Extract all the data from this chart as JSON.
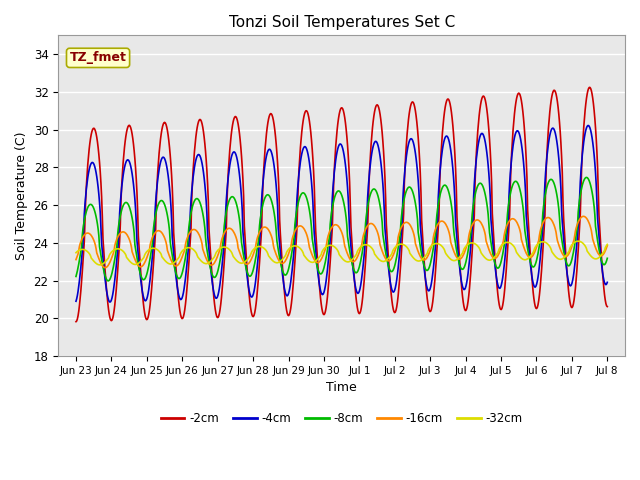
{
  "title": "Tonzi Soil Temperatures Set C",
  "xlabel": "Time",
  "ylabel": "Soil Temperature (C)",
  "ylim": [
    18,
    35
  ],
  "bg_color": "#e8e8e8",
  "annotation_text": "TZ_fmet",
  "annotation_bg": "#ffffcc",
  "annotation_border": "#aaaa00",
  "annotation_text_color": "#880000",
  "series": [
    {
      "label": "-2cm",
      "color": "#cc0000",
      "amplitude": 5.5,
      "phase_lag": 0.0,
      "base": 24.5,
      "base_trend": 1.5,
      "sharpness": 3.0
    },
    {
      "label": "-4cm",
      "color": "#0000cc",
      "amplitude": 4.0,
      "phase_lag": 0.08,
      "base": 24.2,
      "base_trend": 1.5,
      "sharpness": 2.0
    },
    {
      "label": "-8cm",
      "color": "#00bb00",
      "amplitude": 2.2,
      "phase_lag": 0.18,
      "base": 23.8,
      "base_trend": 1.2,
      "sharpness": 1.2
    },
    {
      "label": "-16cm",
      "color": "#ff8800",
      "amplitude": 1.0,
      "phase_lag": 0.35,
      "base": 23.5,
      "base_trend": 0.8,
      "sharpness": 0.8
    },
    {
      "label": "-32cm",
      "color": "#dddd00",
      "amplitude": 0.45,
      "phase_lag": 0.65,
      "base": 23.2,
      "base_trend": 0.4,
      "sharpness": 0.5
    }
  ],
  "tick_labels": [
    "Jun 23",
    "Jun 24",
    "Jun 25",
    "Jun 26",
    "Jun 27",
    "Jun 28",
    "Jun 29",
    "Jun 30",
    "Jul 1",
    "Jul 2",
    "Jul 3",
    "Jul 4",
    "Jul 5",
    "Jul 6",
    "Jul 7",
    "Jul 8"
  ],
  "tick_positions": [
    0,
    1,
    2,
    3,
    4,
    5,
    6,
    7,
    8,
    9,
    10,
    11,
    12,
    13,
    14,
    15
  ],
  "yticks": [
    18,
    20,
    22,
    24,
    26,
    28,
    30,
    32,
    34
  ],
  "grid_color": "#ffffff",
  "linewidth": 1.2
}
